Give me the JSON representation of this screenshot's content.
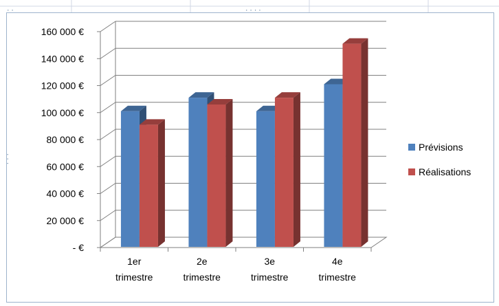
{
  "chart_data": {
    "type": "bar",
    "title": "",
    "xlabel": "",
    "ylabel": "",
    "categories": [
      [
        "1er",
        "trimestre"
      ],
      [
        "2e",
        "trimestre"
      ],
      [
        "3e",
        "trimestre"
      ],
      [
        "4e",
        "trimestre"
      ]
    ],
    "series": [
      {
        "name": "Prévisions",
        "color": "#4f81bd",
        "values": [
          100000,
          110000,
          100000,
          120000
        ]
      },
      {
        "name": "Réalisations",
        "color": "#c0504d",
        "values": [
          90000,
          105000,
          110000,
          150000
        ]
      }
    ],
    "ylim": [
      0,
      160000
    ],
    "ytick_labels": [
      "-  €",
      "20 000 €",
      "40 000 €",
      "60 000 €",
      "80 000 €",
      "100 000 €",
      "120 000 €",
      "140 000 €",
      "160 000 €"
    ],
    "style": "3d-clustered-column",
    "grid": true,
    "legend_position": "right"
  }
}
